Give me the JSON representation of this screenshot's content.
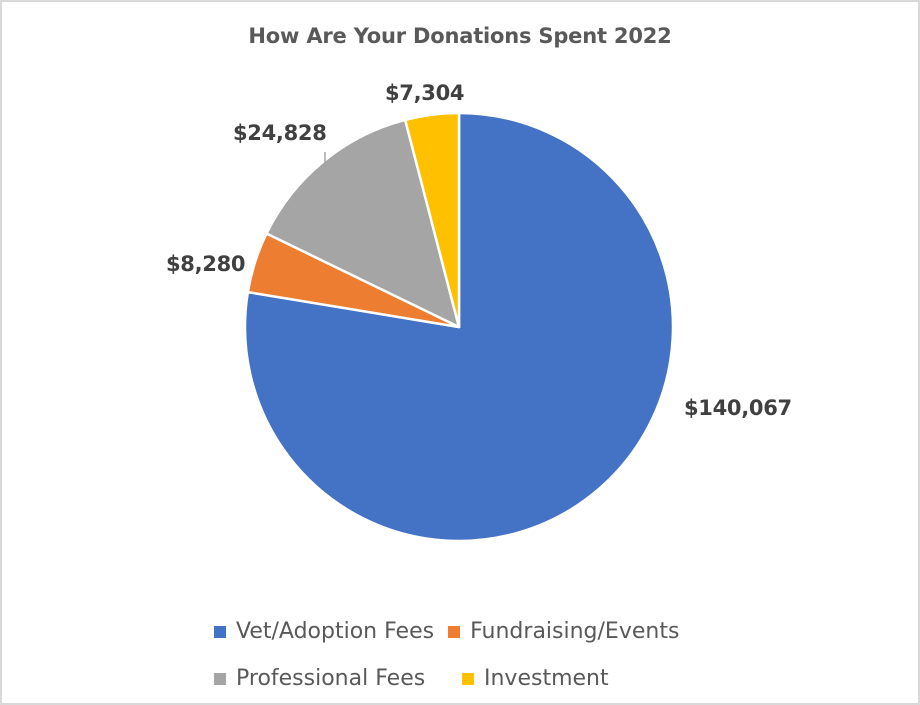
{
  "chart_data": {
    "type": "pie",
    "title": "How Are Your Donations Spent 2022",
    "start_angle_deg": 0,
    "direction": "clockwise",
    "slices": [
      {
        "name": "Vet/Adoption Fees",
        "value": 140067,
        "label": "$140,067",
        "color": "#4472c4"
      },
      {
        "name": "Fundraising/Events",
        "value": 8280,
        "label": "$8,280",
        "color": "#ed7d31"
      },
      {
        "name": "Professional Fees",
        "value": 24828,
        "label": "$24,828",
        "color": "#a5a5a5"
      },
      {
        "name": "Investment",
        "value": 7304,
        "label": "$7,304",
        "color": "#ffc000"
      }
    ],
    "legend_position": "bottom"
  },
  "labels": {
    "vet": "$140,067",
    "fundraising": "$8,280",
    "professional": "$24,828",
    "investment": "$7,304"
  },
  "legend": {
    "vet": "Vet/Adoption Fees",
    "fundraising": "Fundraising/Events",
    "professional": "Professional Fees",
    "investment": "Investment"
  },
  "colors": {
    "vet": "#4472c4",
    "fundraising": "#ed7d31",
    "professional": "#a5a5a5",
    "investment": "#ffc000",
    "border": "#d9d9d9"
  }
}
